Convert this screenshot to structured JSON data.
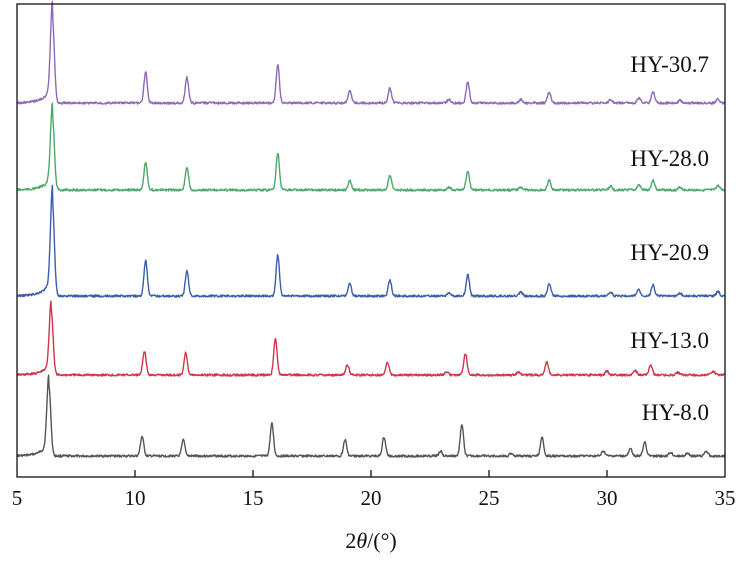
{
  "chart_data": {
    "type": "line",
    "title": "",
    "xlabel": "2θ/(°)",
    "xlabel_var": "θ",
    "xlabel_prefix": "2",
    "xlabel_suffix": "/(°)",
    "ylabel": "",
    "xlim": [
      5,
      35
    ],
    "xticks": [
      "5",
      "10",
      "15",
      "20",
      "25",
      "30",
      "35"
    ],
    "y_axis": "stacked, offset, unlabeled",
    "grid": false,
    "legend": "labels above each trace, right side",
    "series": [
      {
        "name": "HY-8.0",
        "color": "#555555",
        "peaks": [
          {
            "x": 6.35,
            "height": 1.0
          },
          {
            "x": 10.3,
            "height": 0.28
          },
          {
            "x": 12.05,
            "height": 0.23
          },
          {
            "x": 15.8,
            "height": 0.46
          },
          {
            "x": 18.9,
            "height": 0.23
          },
          {
            "x": 20.55,
            "height": 0.27
          },
          {
            "x": 22.95,
            "height": 0.07
          },
          {
            "x": 23.85,
            "height": 0.45
          },
          {
            "x": 25.95,
            "height": 0.04
          },
          {
            "x": 27.25,
            "height": 0.26
          },
          {
            "x": 29.85,
            "height": 0.07
          },
          {
            "x": 31.0,
            "height": 0.1
          },
          {
            "x": 31.6,
            "height": 0.2
          },
          {
            "x": 32.7,
            "height": 0.05
          },
          {
            "x": 33.4,
            "height": 0.04
          },
          {
            "x": 34.2,
            "height": 0.07
          }
        ]
      },
      {
        "name": "HY-13.0",
        "color": "#d0354a",
        "peaks": [
          {
            "x": 6.45,
            "height": 1.0
          },
          {
            "x": 10.4,
            "height": 0.37
          },
          {
            "x": 12.15,
            "height": 0.35
          },
          {
            "x": 15.95,
            "height": 0.58
          },
          {
            "x": 19.0,
            "height": 0.16
          },
          {
            "x": 20.7,
            "height": 0.2
          },
          {
            "x": 23.2,
            "height": 0.05
          },
          {
            "x": 24.0,
            "height": 0.34
          },
          {
            "x": 26.25,
            "height": 0.05
          },
          {
            "x": 27.45,
            "height": 0.2
          },
          {
            "x": 30.0,
            "height": 0.06
          },
          {
            "x": 31.2,
            "height": 0.07
          },
          {
            "x": 31.85,
            "height": 0.15
          },
          {
            "x": 33.0,
            "height": 0.04
          },
          {
            "x": 34.5,
            "height": 0.06
          }
        ]
      },
      {
        "name": "HY-20.9",
        "color": "#3a5ea8",
        "peaks": [
          {
            "x": 6.5,
            "height": 1.0
          },
          {
            "x": 10.45,
            "height": 0.38
          },
          {
            "x": 12.2,
            "height": 0.27
          },
          {
            "x": 16.05,
            "height": 0.44
          },
          {
            "x": 19.1,
            "height": 0.13
          },
          {
            "x": 20.8,
            "height": 0.17
          },
          {
            "x": 23.3,
            "height": 0.04
          },
          {
            "x": 24.1,
            "height": 0.23
          },
          {
            "x": 26.35,
            "height": 0.04
          },
          {
            "x": 27.55,
            "height": 0.13
          },
          {
            "x": 30.15,
            "height": 0.04
          },
          {
            "x": 31.35,
            "height": 0.07
          },
          {
            "x": 31.95,
            "height": 0.12
          },
          {
            "x": 33.1,
            "height": 0.03
          },
          {
            "x": 34.7,
            "height": 0.05
          }
        ]
      },
      {
        "name": "HY-28.0",
        "color": "#4da86a",
        "peaks": [
          {
            "x": 6.5,
            "height": 1.0
          },
          {
            "x": 10.45,
            "height": 0.38
          },
          {
            "x": 12.2,
            "height": 0.31
          },
          {
            "x": 16.05,
            "height": 0.5
          },
          {
            "x": 19.1,
            "height": 0.13
          },
          {
            "x": 20.8,
            "height": 0.2
          },
          {
            "x": 23.3,
            "height": 0.04
          },
          {
            "x": 24.1,
            "height": 0.25
          },
          {
            "x": 26.35,
            "height": 0.04
          },
          {
            "x": 27.55,
            "height": 0.13
          },
          {
            "x": 30.15,
            "height": 0.05
          },
          {
            "x": 31.35,
            "height": 0.07
          },
          {
            "x": 31.95,
            "height": 0.13
          },
          {
            "x": 33.1,
            "height": 0.04
          },
          {
            "x": 34.7,
            "height": 0.06
          }
        ]
      },
      {
        "name": "HY-30.7",
        "color": "#8e69b8",
        "peaks": [
          {
            "x": 6.5,
            "height": 1.0
          },
          {
            "x": 10.45,
            "height": 0.36
          },
          {
            "x": 12.2,
            "height": 0.3
          },
          {
            "x": 16.05,
            "height": 0.44
          },
          {
            "x": 19.1,
            "height": 0.14
          },
          {
            "x": 20.8,
            "height": 0.17
          },
          {
            "x": 23.3,
            "height": 0.04
          },
          {
            "x": 24.1,
            "height": 0.24
          },
          {
            "x": 26.35,
            "height": 0.04
          },
          {
            "x": 27.55,
            "height": 0.13
          },
          {
            "x": 30.15,
            "height": 0.04
          },
          {
            "x": 31.35,
            "height": 0.06
          },
          {
            "x": 31.95,
            "height": 0.13
          },
          {
            "x": 33.1,
            "height": 0.03
          },
          {
            "x": 34.7,
            "height": 0.05
          }
        ]
      }
    ]
  }
}
